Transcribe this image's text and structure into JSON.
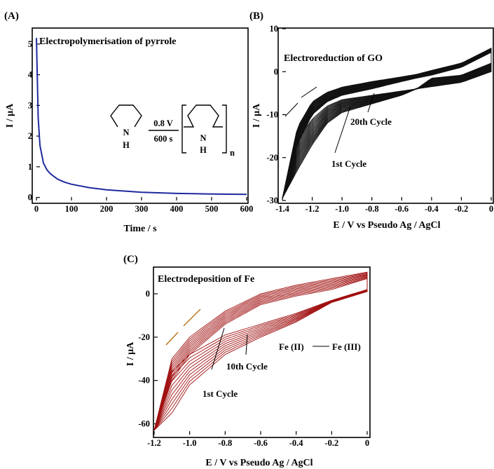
{
  "panels": [
    {
      "label": "(A)",
      "title": "Electropolymerisation of pyrrole",
      "xlabel": "Time / s",
      "ylabel": "I / μA",
      "color": "#1f2a9e",
      "scheme": {
        "condition_top": "0.8 V",
        "condition_bottom": "600 s",
        "nh": "N",
        "h": "H",
        "n_sub": "n"
      },
      "chart_data": {
        "type": "line",
        "x": [
          0,
          5,
          10,
          20,
          30,
          40,
          60,
          80,
          100,
          150,
          200,
          300,
          400,
          500,
          600
        ],
        "series": [
          {
            "values": [
              5.2,
              2.6,
              1.7,
              1.12,
              0.9,
              0.77,
              0.6,
              0.5,
              0.43,
              0.32,
              0.25,
              0.17,
              0.13,
              0.11,
              0.1
            ]
          }
        ],
        "xlim": [
          0,
          600
        ],
        "ylim": [
          -0.1,
          5.5
        ],
        "xticks": [
          "0",
          "100",
          "200",
          "300",
          "400",
          "500",
          "600"
        ],
        "yticks": [
          "0",
          "1",
          "2",
          "3",
          "4",
          "5"
        ]
      }
    },
    {
      "label": "(B)",
      "title": "Electroreduction of GO",
      "xlabel": "E / V vs Pseudo Ag / AgCl",
      "ylabel": "I / μA",
      "color": "#111111",
      "annotations": {
        "first_cycle": "1st Cycle",
        "last_cycle": "20th Cycle"
      },
      "chart_data": {
        "type": "line",
        "cycles": 20,
        "x": [
          -1.4,
          -1.3,
          -1.2,
          -1.1,
          -1.0,
          -0.8,
          -0.6,
          -0.5,
          -0.4,
          -0.2,
          0.0
        ],
        "series": [
          {
            "name": "1st Cycle forward",
            "values": [
              -29.5,
              -17,
              -10,
              -7,
              -5.5,
              -4.0,
              -2.3,
              -1.5,
              -0.8,
              1.0,
              4.5
            ]
          },
          {
            "name": "1st Cycle reverse",
            "values": [
              -29.5,
              -23,
              -17,
              -12,
              -9.5,
              -7.5,
              -5.5,
              -4.0,
              -3.5,
              -2.5,
              0.0
            ]
          },
          {
            "name": "20th Cycle forward",
            "values": [
              -29.5,
              -13,
              -7,
              -4.8,
              -3.6,
              -2.3,
              -1.2,
              -0.6,
              0.3,
              2.0,
              5.5
            ]
          },
          {
            "name": "20th Cycle reverse",
            "values": [
              -29.5,
              -16,
              -11,
              -8,
              -6.5,
              -5.5,
              -4.5,
              -4.0,
              -1.5,
              -0.8,
              2.0
            ]
          }
        ],
        "xlim": [
          -1.4,
          0.0
        ],
        "ylim": [
          -30,
          10
        ],
        "xticks": [
          "-1.4",
          "-1.2",
          "-1.0",
          "-0.8",
          "-0.6",
          "-0.4",
          "-0.2",
          "0"
        ],
        "yticks": [
          "10",
          "0",
          "-10",
          "-20",
          "-30"
        ]
      }
    },
    {
      "label": "(C)",
      "title": "Electrodeposition of Fe",
      "xlabel": "E / V vs Pseudo Ag / AgCl",
      "ylabel": "I / μA",
      "color": "#a01010",
      "annotations": {
        "first_cycle": "1st Cycle",
        "last_cycle": "10th Cycle",
        "fe_ii": "Fe (II)",
        "fe_iii": "Fe (III)"
      },
      "chart_data": {
        "type": "line",
        "cycles": 10,
        "x": [
          -1.2,
          -1.1,
          -1.0,
          -0.8,
          -0.6,
          -0.4,
          -0.2,
          0.0
        ],
        "series": [
          {
            "name": "1st Cycle forward",
            "values": [
              -63,
              -40,
              -28,
              -14,
              -5,
              -1,
              2,
              7
            ]
          },
          {
            "name": "1st Cycle reverse",
            "values": [
              -63,
              -55,
              -42,
              -28,
              -20,
              -13,
              -4,
              1
            ]
          },
          {
            "name": "10th Cycle forward",
            "values": [
              -63,
              -30,
              -20,
              -8,
              0,
              4,
              7,
              10
            ]
          },
          {
            "name": "10th Cycle reverse",
            "values": [
              -63,
              -36,
              -28,
              -19,
              -14,
              -9,
              -3,
              2
            ]
          }
        ],
        "xlim": [
          -1.2,
          0.0
        ],
        "ylim": [
          -65,
          12
        ],
        "xticks": [
          "-1.2",
          "-1.0",
          "-0.8",
          "-0.6",
          "-0.4",
          "-0.2",
          "0"
        ],
        "yticks": [
          "0",
          "-20",
          "-40",
          "-60"
        ]
      }
    }
  ]
}
